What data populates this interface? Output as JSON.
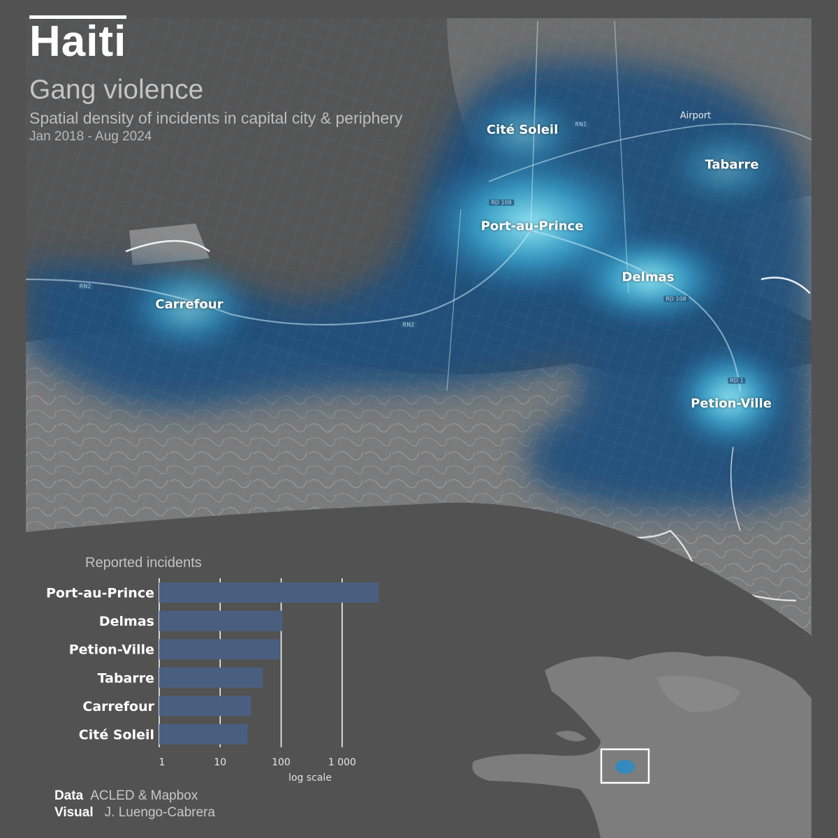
{
  "title": {
    "main": "Haiti",
    "subtitle": "Gang violence",
    "description": "Spatial density of incidents in capital city & periphery",
    "period": "Jan 2018 - Aug 2024"
  },
  "map": {
    "places": [
      {
        "name": "Cité Soleil"
      },
      {
        "name": "Tabarre"
      },
      {
        "name": "Port-au-Prince"
      },
      {
        "name": "Delmas"
      },
      {
        "name": "Carrefour"
      },
      {
        "name": "Petion-Ville"
      }
    ],
    "airport_label": "Airport",
    "roads": [
      "RN1",
      "RD 108",
      "RN2",
      "RN2",
      "RD 108",
      "RD 1"
    ],
    "colors": {
      "density_low": "#1a3d63",
      "density_mid": "#2a8fc7",
      "density_high": "#7fe6f4",
      "land": "#7a7a7a",
      "sea": "#525252"
    }
  },
  "chart_data": {
    "type": "bar",
    "orientation": "horizontal",
    "title": "Reported incidents",
    "xlabel": "log scale",
    "xscale": "log",
    "xlim": [
      1,
      10000
    ],
    "xticks": [
      "1",
      "10",
      "100",
      "1 000"
    ],
    "categories": [
      "Port-au-Prince",
      "Delmas",
      "Petion-Ville",
      "Tabarre",
      "Carrefour",
      "Cité Soleil"
    ],
    "values": [
      4000,
      105,
      95,
      50,
      32,
      28
    ],
    "bar_color": "#4a5f80"
  },
  "credits": {
    "data_label": "Data",
    "data_value": "ACLED & Mapbox",
    "visual_label": "Visual",
    "visual_value": "J. Luengo-Cabrera"
  }
}
